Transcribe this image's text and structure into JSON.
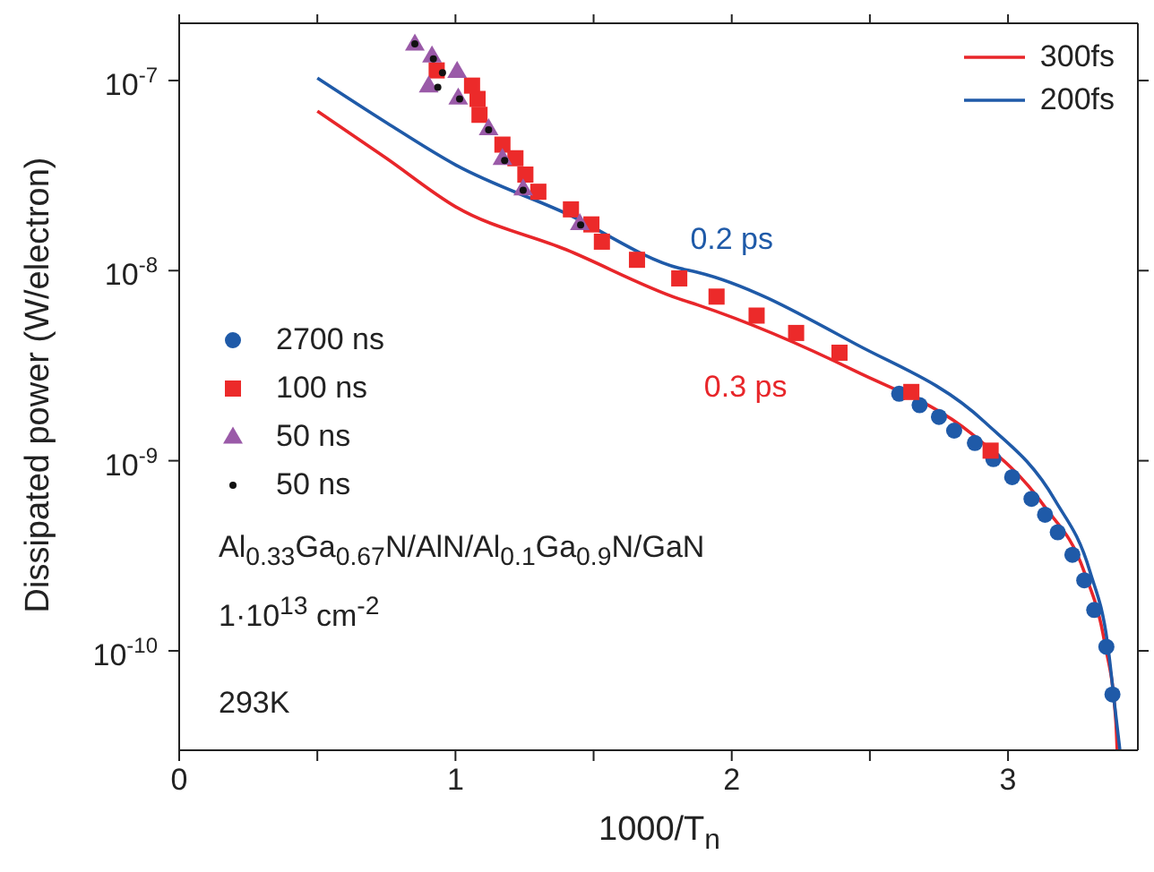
{
  "chart_data": {
    "type": "scatter",
    "xlabel": "1000/T$_{n}$",
    "ylabel": "Dissipated power (W/electron)",
    "log": "y",
    "xlim": [
      0,
      3.47
    ],
    "ylim": [
      3e-11,
      2e-07
    ],
    "xticks": [
      0,
      {
        "value": 0.5,
        "label": null
      },
      1,
      {
        "value": 1.5,
        "label": null
      },
      2,
      {
        "value": 2.5,
        "label": null
      },
      3
    ],
    "yticks": [
      {
        "value": 1e-10,
        "label": "10$^{-10}$"
      },
      {
        "value": 1e-09,
        "label": "10$^{-9}$"
      },
      {
        "value": 1e-08,
        "label": "10$^{-8}$"
      },
      {
        "value": 1e-07,
        "label": "10$^{-7}$"
      }
    ],
    "grid": false,
    "legend": "top right",
    "series": [
      {
        "type": "line",
        "name": "300fs",
        "color": "#e8262a",
        "marker": "none",
        "x": [
          0.5,
          0.75,
          1.0,
          1.4,
          1.81,
          1.877,
          2.45,
          2.87,
          3.13,
          3.276,
          3.35,
          3.39,
          3.395
        ],
        "values": [
          6.9e-08,
          3.9e-08,
          2.17e-08,
          1.29e-08,
          7.1e-09,
          6.6e-09,
          2.95e-09,
          1.38e-09,
          5.8e-10,
          2.6e-10,
          1.1e-10,
          4.3e-11,
          3e-11
        ]
      },
      {
        "type": "line",
        "name": "200fs",
        "color": "#1f5aa8",
        "marker": "none",
        "x": [
          0.5,
          0.75,
          1.0,
          1.4,
          1.81,
          1.877,
          2.45,
          2.915,
          3.17,
          3.297,
          3.36,
          3.39,
          3.405
        ],
        "values": [
          1.03e-07,
          6e-08,
          3.6e-08,
          2e-08,
          1.03e-08,
          9.8e-09,
          4.1e-09,
          1.6e-09,
          6.2e-10,
          2.6e-10,
          1.1e-10,
          4.6e-11,
          3e-11
        ]
      },
      {
        "name": "2700 ns",
        "color": "#1f5aa8",
        "marker": "circle",
        "x": [
          2.606,
          2.68,
          2.75,
          2.805,
          2.88,
          2.947,
          3.015,
          3.085,
          3.134,
          3.18,
          3.233,
          3.276,
          3.312,
          3.356,
          3.378
        ],
        "values": [
          2.25e-09,
          1.96e-09,
          1.7e-09,
          1.44e-09,
          1.24e-09,
          1.02e-09,
          8.2e-10,
          6.3e-10,
          5.2e-10,
          4.2e-10,
          3.2e-10,
          2.35e-10,
          1.64e-10,
          1.05e-10,
          5.9e-11
        ]
      },
      {
        "name": "100 ns",
        "color": "#ec2a2a",
        "marker": "square",
        "x": [
          0.932,
          1.06,
          1.08,
          1.087,
          1.12,
          1.17,
          1.217,
          1.253,
          1.3,
          1.418,
          1.492,
          1.53,
          1.657,
          1.81,
          1.945,
          2.09,
          2.233,
          2.39,
          2.65,
          2.937
        ],
        "values": [
          1.13e-07,
          9.4e-08,
          8e-08,
          6.6e-08,
          null,
          4.6e-08,
          3.9e-08,
          3.2e-08,
          2.6e-08,
          2.1e-08,
          1.75e-08,
          1.42e-08,
          1.14e-08,
          9.1e-09,
          7.3e-09,
          5.8e-09,
          4.7e-09,
          3.7e-09,
          2.3e-09,
          1.13e-09
        ]
      },
      {
        "name": "50 ns",
        "color": "#9a5aa8",
        "marker": "triangle",
        "x": [
          0.853,
          0.915,
          0.903,
          1.006,
          1.01,
          1.12,
          1.17,
          1.245,
          1.45
        ],
        "values": [
          1.56e-07,
          1.35e-07,
          9.4e-08,
          1.12e-07,
          8.1e-08,
          5.6e-08,
          3.9e-08,
          2.7e-08,
          1.77e-08
        ]
      },
      {
        "name": "50 ns",
        "color": "#111111",
        "marker": "circle",
        "x": [
          0.853,
          0.92,
          0.936,
          0.953,
          1.015,
          1.12,
          1.178,
          1.245,
          1.453
        ],
        "values": [
          1.56e-07,
          1.3e-07,
          9.2e-08,
          1.1e-07,
          8e-08,
          5.5e-08,
          3.8e-08,
          2.65e-08,
          1.74e-08
        ]
      }
    ],
    "annotations": [
      {
        "text": "0.2 ps",
        "x": 2.0,
        "y": 8.1e-09
      },
      {
        "text": "0.3 ps",
        "x": 2.05,
        "y": 5.2e-09
      },
      "Al$_{0.33}$Ga$_{0.67}$N/AlN/Al$_{0.1}$Ga$_{0.9}$N/GaN",
      "1·10$^{13}$ cm$^{-2}$",
      "293K"
    ]
  }
}
